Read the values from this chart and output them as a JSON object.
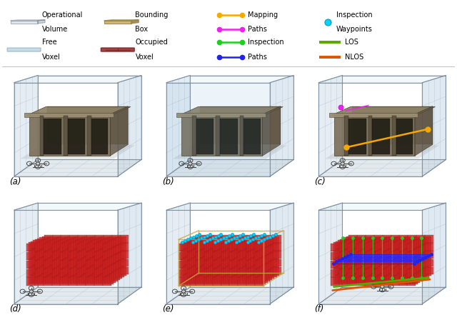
{
  "subplot_labels": [
    "(a)",
    "(b)",
    "(c)",
    "(d)",
    "(e)",
    "(f)"
  ],
  "bg_color": "#ffffff",
  "fig_width": 6.4,
  "fig_height": 4.48,
  "legend_row1": [
    {
      "type": "cube",
      "face": "#b8ccd8",
      "edge": "#667788",
      "label1": "Operational",
      "label2": "Volume"
    },
    {
      "type": "cube",
      "face": "#c8b06a",
      "edge": "#9a8440",
      "label1": "Bounding",
      "label2": "Box"
    },
    {
      "type": "path",
      "colors": [
        "#f5a800",
        "#ee00ee"
      ],
      "label1": "Mapping",
      "label2": "Paths"
    },
    {
      "type": "dot",
      "color": "#00d4ff",
      "label1": "Inspection",
      "label2": "Waypoints"
    }
  ],
  "legend_row2": [
    {
      "type": "voxel",
      "face": "#a8c8dc",
      "edge": "#88aabb",
      "label1": "Free",
      "label2": "Voxel"
    },
    {
      "type": "voxel_cross",
      "face": "#993333",
      "edge": "#772222",
      "label1": "Occupied",
      "label2": "Voxel"
    },
    {
      "type": "path2",
      "colors": [
        "#22cc22",
        "#2222ee"
      ],
      "label1": "Inspection",
      "label2": "Paths"
    },
    {
      "type": "lines",
      "colors": [
        "#55aa00",
        "#dd5500"
      ],
      "labels": [
        "LOS",
        "NLOS"
      ]
    }
  ],
  "scene_bg_top": "#c8e0ee",
  "scene_bg_bottom": "#e8eef2",
  "box_edge_color": "#8899aa",
  "floor_color": "#d0d8dc",
  "building_body": "#7a6a50",
  "building_roof": "#8a7a5a",
  "building_dark": "#3a3028",
  "red_voxel": "#cc2222",
  "red_voxel_edge": "#991111",
  "cyan_dot": "#00ccff",
  "orange_path": "#f5a800",
  "magenta_path": "#ee22ee",
  "green_path": "#22cc22",
  "blue_path": "#2222ee",
  "los_color": "#55aa00",
  "nlos_color": "#dd5500"
}
